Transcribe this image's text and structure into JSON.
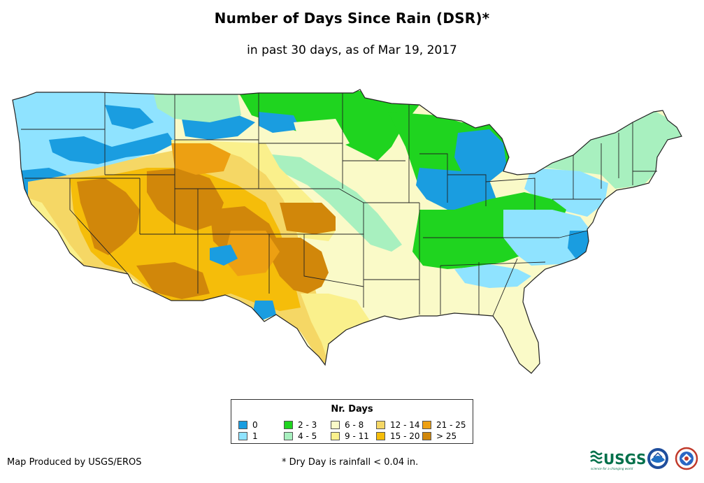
{
  "title": "Number of Days Since Rain (DSR)*",
  "subtitle": "in past 30 days, as of Mar 19, 2017",
  "legend": {
    "title": "Nr. Days",
    "items": [
      {
        "label": "0",
        "color": "#1a9de0"
      },
      {
        "label": "1",
        "color": "#8fe3ff"
      },
      {
        "label": "2 - 3",
        "color": "#1fd41f"
      },
      {
        "label": "4 - 5",
        "color": "#a8f0bf"
      },
      {
        "label": "6 - 8",
        "color": "#fafac8"
      },
      {
        "label": "9 - 11",
        "color": "#faf08c"
      },
      {
        "label": "12 - 14",
        "color": "#f5d765"
      },
      {
        "label": "15 - 20",
        "color": "#f5bd0a"
      },
      {
        "label": "21 - 25",
        "color": "#eda012"
      },
      {
        "label": "> 25",
        "color": "#d1870a"
      }
    ]
  },
  "credit": "Map Produced by USGS/EROS",
  "footnote": "* Dry Day is rainfall < 0.04 in.",
  "logos": {
    "usgs": "USGS",
    "usgs_tagline": "science for a changing world"
  }
}
